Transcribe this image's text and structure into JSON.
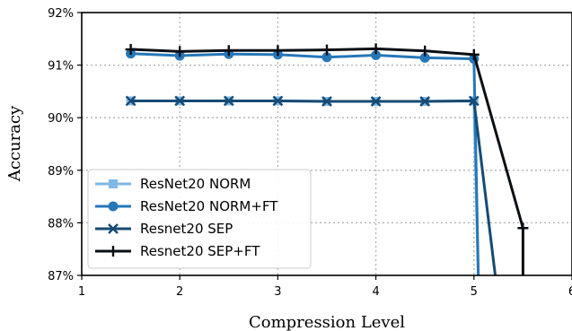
{
  "chart_data": {
    "type": "line",
    "xlabel": "Compression Level",
    "ylabel": "Accuracy",
    "xlim": [
      1,
      6
    ],
    "ylim": [
      87,
      92
    ],
    "xticks": [
      1,
      2,
      3,
      4,
      5,
      6
    ],
    "yticks": [
      87,
      88,
      89,
      90,
      91,
      92
    ],
    "ytick_labels": [
      "87%",
      "88%",
      "89%",
      "90%",
      "91%",
      "92%"
    ],
    "grid": true,
    "legend_position": "lower-left",
    "series": [
      {
        "name": "ResNet20 NORM",
        "color": "#7fb8e6",
        "marker": "square",
        "x": [
          1.5,
          2.0,
          2.5,
          3.0,
          3.5,
          4.0,
          4.5,
          5.0,
          5.05
        ],
        "y": [
          90.32,
          90.32,
          90.32,
          90.32,
          90.31,
          90.31,
          90.31,
          90.32,
          86.5
        ]
      },
      {
        "name": "ResNet20 NORM+FT",
        "color": "#2677b8",
        "marker": "circle",
        "x": [
          1.5,
          2.0,
          2.5,
          3.0,
          3.5,
          4.0,
          4.5,
          5.0,
          5.05
        ],
        "y": [
          91.22,
          91.18,
          91.21,
          91.2,
          91.15,
          91.19,
          91.14,
          91.12,
          86.5
        ]
      },
      {
        "name": "Resnet20 SEP",
        "color": "#164a73",
        "marker": "x",
        "x": [
          1.5,
          2.0,
          2.5,
          3.0,
          3.5,
          4.0,
          4.5,
          5.0,
          5.25
        ],
        "y": [
          90.32,
          90.32,
          90.32,
          90.32,
          90.31,
          90.31,
          90.31,
          90.32,
          86.5
        ]
      },
      {
        "name": "Resnet20 SEP+FT",
        "color": "#0a0f14",
        "marker": "plus",
        "x": [
          1.5,
          2.0,
          2.5,
          3.0,
          3.5,
          4.0,
          4.5,
          5.0,
          5.5,
          5.5
        ],
        "y": [
          91.3,
          91.26,
          91.28,
          91.28,
          91.29,
          91.31,
          91.27,
          91.2,
          87.9,
          86.5
        ]
      }
    ]
  }
}
